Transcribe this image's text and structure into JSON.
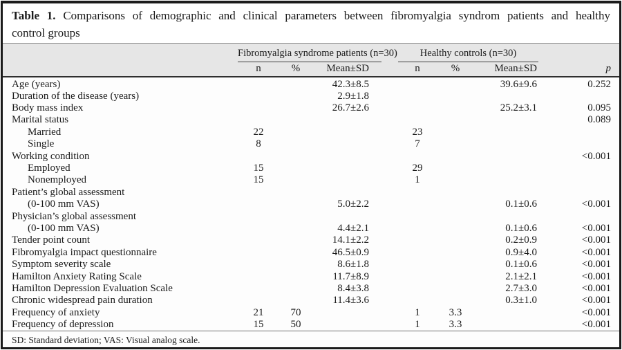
{
  "title": {
    "label": "Table 1.",
    "line1_rest": "Comparisons of demographic and clinical parameters between fibromyalgia syndrom patients and healthy",
    "line2": "control groups"
  },
  "table": {
    "groups": [
      {
        "label": "Fibromyalgia syndrome patients (n=30)"
      },
      {
        "label": "Healthy controls (n=30)"
      }
    ],
    "subheaders": {
      "n": "n",
      "pct": "%",
      "mean": "Mean±SD",
      "p": "p"
    },
    "rows": [
      {
        "label": "Age (years)",
        "indent": false,
        "n1": "",
        "pct1": "",
        "mean1": "42.3±8.5",
        "n2": "",
        "pct2": "",
        "mean2": "39.6±9.6",
        "p": "0.252"
      },
      {
        "label": "Duration of the disease (years)",
        "indent": false,
        "n1": "",
        "pct1": "",
        "mean1": "2.9±1.8",
        "n2": "",
        "pct2": "",
        "mean2": "",
        "p": ""
      },
      {
        "label": "Body mass index",
        "indent": false,
        "n1": "",
        "pct1": "",
        "mean1": "26.7±2.6",
        "n2": "",
        "pct2": "",
        "mean2": "25.2±3.1",
        "p": "0.095"
      },
      {
        "label": "Marital status",
        "indent": false,
        "n1": "",
        "pct1": "",
        "mean1": "",
        "n2": "",
        "pct2": "",
        "mean2": "",
        "p": "0.089"
      },
      {
        "label": "Married",
        "indent": true,
        "n1": "22",
        "pct1": "",
        "mean1": "",
        "n2": "23",
        "pct2": "",
        "mean2": "",
        "p": ""
      },
      {
        "label": "Single",
        "indent": true,
        "n1": "8",
        "pct1": "",
        "mean1": "",
        "n2": "7",
        "pct2": "",
        "mean2": "",
        "p": ""
      },
      {
        "label": "Working condition",
        "indent": false,
        "n1": "",
        "pct1": "",
        "mean1": "",
        "n2": "",
        "pct2": "",
        "mean2": "",
        "p": "<0.001"
      },
      {
        "label": "Employed",
        "indent": true,
        "n1": "15",
        "pct1": "",
        "mean1": "",
        "n2": "29",
        "pct2": "",
        "mean2": "",
        "p": ""
      },
      {
        "label": "Nonemployed",
        "indent": true,
        "n1": "15",
        "pct1": "",
        "mean1": "",
        "n2": "1",
        "pct2": "",
        "mean2": "",
        "p": ""
      },
      {
        "label": "Patient’s global assessment",
        "indent": false,
        "n1": "",
        "pct1": "",
        "mean1": "",
        "n2": "",
        "pct2": "",
        "mean2": "",
        "p": ""
      },
      {
        "label": "(0-100 mm VAS)",
        "indent": true,
        "n1": "",
        "pct1": "",
        "mean1": "5.0±2.2",
        "n2": "",
        "pct2": "",
        "mean2": "0.1±0.6",
        "p": "<0.001"
      },
      {
        "label": "Physician’s global assessment",
        "indent": false,
        "n1": "",
        "pct1": "",
        "mean1": "",
        "n2": "",
        "pct2": "",
        "mean2": "",
        "p": ""
      },
      {
        "label": "(0-100 mm VAS)",
        "indent": true,
        "n1": "",
        "pct1": "",
        "mean1": "4.4±2.1",
        "n2": "",
        "pct2": "",
        "mean2": "0.1±0.6",
        "p": "<0.001"
      },
      {
        "label": "Tender point count",
        "indent": false,
        "n1": "",
        "pct1": "",
        "mean1": "14.1±2.2",
        "n2": "",
        "pct2": "",
        "mean2": "0.2±0.9",
        "p": "<0.001"
      },
      {
        "label": "Fibromyalgia impact questionnaire",
        "indent": false,
        "n1": "",
        "pct1": "",
        "mean1": "46.5±0.9",
        "n2": "",
        "pct2": "",
        "mean2": "0.9±4.0",
        "p": "<0.001"
      },
      {
        "label": "Symptom severity scale",
        "indent": false,
        "n1": "",
        "pct1": "",
        "mean1": "8.6±1.8",
        "n2": "",
        "pct2": "",
        "mean2": "0.1±0.6",
        "p": "<0.001"
      },
      {
        "label": "Hamilton Anxiety Rating Scale",
        "indent": false,
        "n1": "",
        "pct1": "",
        "mean1": "11.7±8.9",
        "n2": "",
        "pct2": "",
        "mean2": "2.1±2.1",
        "p": "<0.001"
      },
      {
        "label": "Hamilton Depression Evaluation Scale",
        "indent": false,
        "n1": "",
        "pct1": "",
        "mean1": "8.4±3.8",
        "n2": "",
        "pct2": "",
        "mean2": "2.7±3.0",
        "p": "<0.001"
      },
      {
        "label": "Chronic widespread pain duration",
        "indent": false,
        "n1": "",
        "pct1": "",
        "mean1": "11.4±3.6",
        "n2": "",
        "pct2": "",
        "mean2": "0.3±1.0",
        "p": "<0.001"
      },
      {
        "label": "Frequency of anxiety",
        "indent": false,
        "n1": "21",
        "pct1": "70",
        "mean1": "",
        "n2": "1",
        "pct2": "3.3",
        "mean2": "",
        "p": "<0.001"
      },
      {
        "label": "Frequency of depression",
        "indent": false,
        "n1": "15",
        "pct1": "50",
        "mean1": "",
        "n2": "1",
        "pct2": "3.3",
        "mean2": "",
        "p": "<0.001"
      }
    ]
  },
  "footnote": "SD: Standard deviation; VAS: Visual analog scale.",
  "colors": {
    "border": "#1b1b1b",
    "header_band": "#e6e6e6",
    "text": "#1a1a1a"
  }
}
